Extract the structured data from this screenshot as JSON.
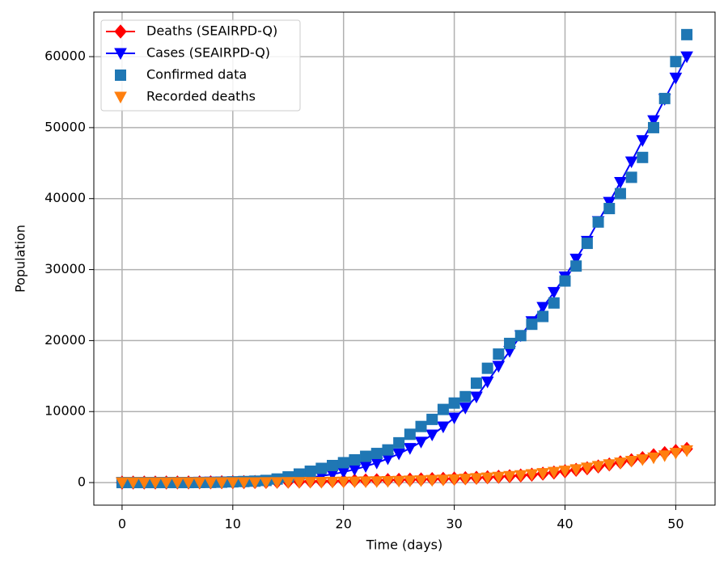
{
  "chart_data": {
    "type": "line",
    "xlabel": "Time (days)",
    "ylabel": "Population",
    "x": [
      0,
      1,
      2,
      3,
      4,
      5,
      6,
      7,
      8,
      9,
      10,
      11,
      12,
      13,
      14,
      15,
      16,
      17,
      18,
      19,
      20,
      21,
      22,
      23,
      24,
      25,
      26,
      27,
      28,
      29,
      30,
      31,
      32,
      33,
      34,
      35,
      36,
      37,
      38,
      39,
      40,
      41,
      42,
      43,
      44,
      45,
      46,
      47,
      48,
      49,
      50,
      51
    ],
    "series": [
      {
        "name": "Deaths (SEAIRPD-Q)",
        "color": "#ff0000",
        "marker": "diamond",
        "line": true,
        "values": [
          0,
          3,
          6,
          10,
          14,
          19,
          25,
          32,
          40,
          50,
          60,
          72,
          86,
          100,
          118,
          136,
          156,
          178,
          200,
          225,
          250,
          275,
          300,
          330,
          360,
          390,
          420,
          450,
          490,
          530,
          570,
          620,
          680,
          750,
          820,
          900,
          1000,
          1120,
          1260,
          1420,
          1600,
          1800,
          2020,
          2270,
          2550,
          2850,
          3150,
          3450,
          3850,
          4150,
          4450,
          4750
        ]
      },
      {
        "name": "Cases (SEAIRPD-Q)",
        "color": "#0000ff",
        "marker": "triangle-down",
        "line": true,
        "values": [
          0,
          10,
          20,
          30,
          40,
          50,
          60,
          75,
          90,
          110,
          130,
          160,
          200,
          250,
          320,
          420,
          550,
          720,
          930,
          1180,
          1480,
          1850,
          2280,
          2780,
          3370,
          4050,
          4830,
          5720,
          6730,
          7860,
          9120,
          10520,
          12070,
          14200,
          16400,
          18500,
          20700,
          22700,
          24700,
          26800,
          29000,
          31500,
          34000,
          36800,
          39500,
          42300,
          45200,
          48200,
          51000,
          54000,
          57000,
          60000
        ]
      },
      {
        "name": "Confirmed data",
        "color": "#1f77b4",
        "marker": "square",
        "line": false,
        "values": [
          0,
          0,
          0,
          0,
          0,
          0,
          0,
          10,
          20,
          50,
          100,
          150,
          200,
          300,
          500,
          800,
          1200,
          1600,
          2000,
          2400,
          2800,
          3200,
          3700,
          4100,
          4600,
          5600,
          6800,
          7900,
          8900,
          10300,
          11200,
          12100,
          14000,
          16100,
          18100,
          19600,
          20700,
          22300,
          23400,
          25300,
          28400,
          30500,
          33700,
          36700,
          38600,
          40700,
          43000,
          45800,
          50000,
          54100,
          59300,
          63100
        ]
      },
      {
        "name": "Recorded deaths",
        "color": "#ff7f0e",
        "marker": "triangle-down",
        "line": false,
        "values": [
          0,
          0,
          0,
          0,
          0,
          1,
          2,
          3,
          4,
          6,
          8,
          10,
          14,
          18,
          24,
          30,
          40,
          50,
          62,
          76,
          92,
          110,
          130,
          155,
          180,
          210,
          245,
          285,
          330,
          380,
          440,
          510,
          590,
          680,
          780,
          890,
          1010,
          1150,
          1300,
          1470,
          1650,
          1850,
          2070,
          2300,
          2540,
          2780,
          3030,
          3240,
          3500,
          3800,
          4150,
          4500
        ]
      }
    ],
    "xlim": [
      -2.55,
      53.55
    ],
    "xticks": [
      0,
      10,
      20,
      30,
      40,
      50
    ],
    "ylim": [
      -3180,
      66270
    ],
    "yticks": [
      0,
      10000,
      20000,
      30000,
      40000,
      50000,
      60000
    ],
    "grid": true,
    "legend": "upper-left"
  }
}
